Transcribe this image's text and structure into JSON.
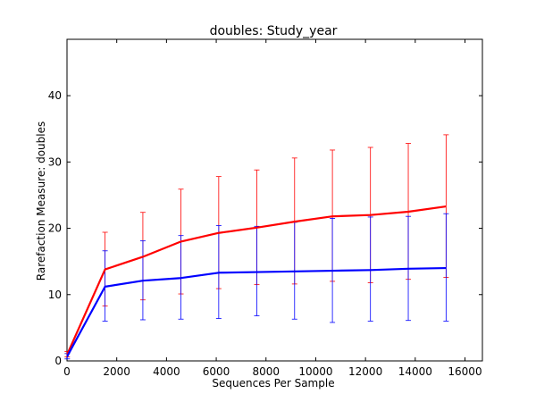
{
  "chart_data": {
    "type": "line",
    "title": "doubles: Study_year",
    "xlabel": "Sequences Per Sample",
    "ylabel": "Rarefaction Measure: doubles",
    "xlim": [
      0,
      16700
    ],
    "ylim": [
      0,
      48.5
    ],
    "xticks": [
      0,
      2000,
      4000,
      6000,
      8000,
      10000,
      12000,
      14000,
      16000
    ],
    "yticks": [
      0,
      10,
      20,
      30,
      40
    ],
    "grid": false,
    "x": [
      10,
      1530,
      3050,
      4580,
      6100,
      7630,
      9150,
      10670,
      12200,
      13720,
      15240
    ],
    "series": [
      {
        "color": "#ff0000",
        "values": [
          1.0,
          13.8,
          15.7,
          18.0,
          19.3,
          20.1,
          21.0,
          21.8,
          22.0,
          22.5,
          23.3
        ],
        "err_low": [
          0.6,
          8.3,
          9.2,
          10.1,
          10.9,
          11.5,
          11.6,
          12.0,
          11.8,
          12.3,
          12.6
        ],
        "err_high": [
          1.4,
          19.4,
          22.4,
          25.9,
          27.8,
          28.8,
          30.6,
          31.8,
          32.2,
          32.8,
          34.1
        ]
      },
      {
        "color": "#0000ff",
        "values": [
          0.7,
          11.2,
          12.1,
          12.5,
          13.3,
          13.4,
          13.5,
          13.6,
          13.7,
          13.9,
          14.0
        ],
        "err_low": [
          0.3,
          6.0,
          6.2,
          6.3,
          6.4,
          6.8,
          6.3,
          5.8,
          6.0,
          6.1,
          6.0
        ],
        "err_high": [
          1.1,
          16.6,
          18.1,
          18.9,
          20.4,
          20.3,
          20.9,
          21.5,
          21.7,
          21.8,
          22.2
        ]
      }
    ]
  }
}
